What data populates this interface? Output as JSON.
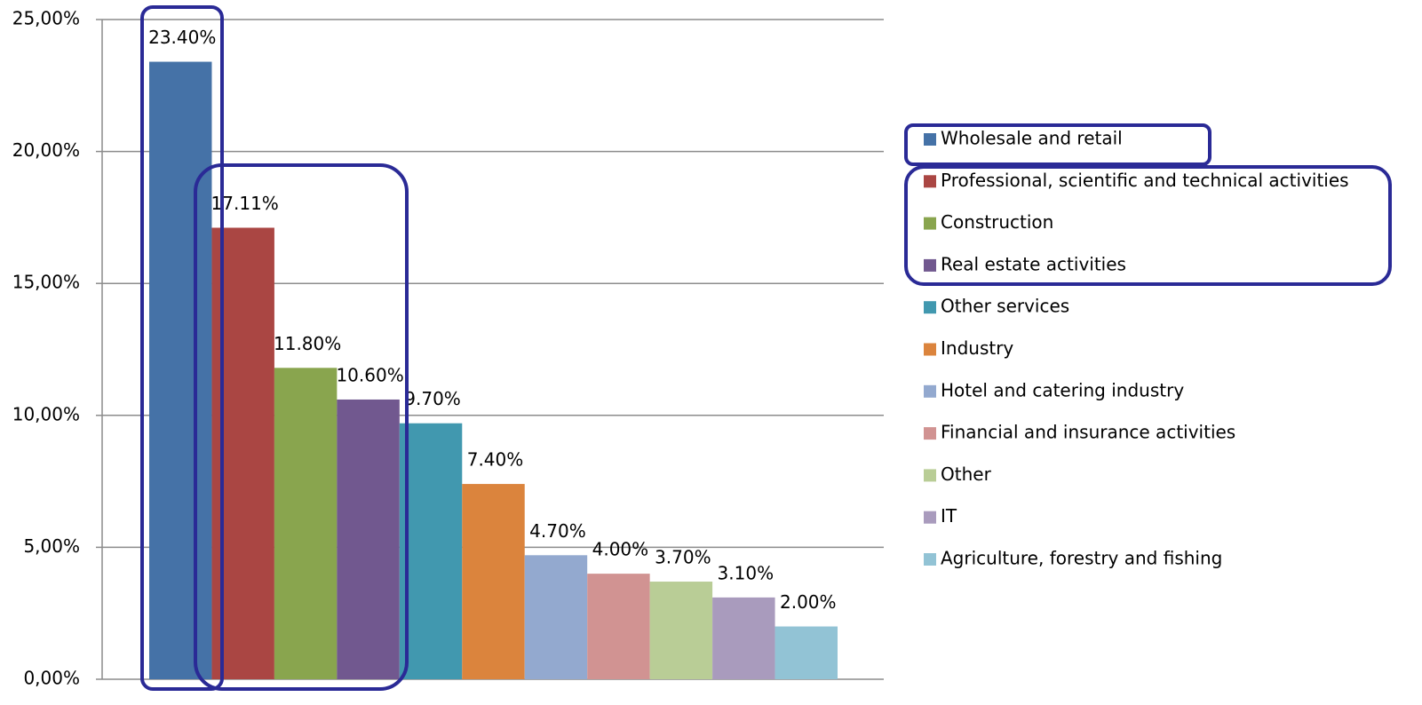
{
  "chart_data": {
    "type": "bar",
    "categories": [
      null
    ],
    "series": [
      {
        "name": "Wholesale and retail",
        "color": "#4572a7",
        "values": [
          23.4
        ],
        "value_labels": [
          "23.40%"
        ]
      },
      {
        "name": "Professional, scientific and technical activities",
        "color": "#aa4643",
        "values": [
          17.11
        ],
        "value_labels": [
          "17.11%"
        ]
      },
      {
        "name": "Construction",
        "color": "#89a54e",
        "values": [
          11.8
        ],
        "value_labels": [
          "11.80%"
        ]
      },
      {
        "name": "Real estate activities",
        "color": "#71588f",
        "values": [
          10.6
        ],
        "value_labels": [
          "10.60%"
        ]
      },
      {
        "name": "Other services",
        "color": "#4198af",
        "values": [
          9.7
        ],
        "value_labels": [
          "9.70%"
        ]
      },
      {
        "name": "Industry",
        "color": "#db843d",
        "values": [
          7.4
        ],
        "value_labels": [
          "7.40%"
        ]
      },
      {
        "name": "Hotel and catering industry",
        "color": "#93a9cf",
        "values": [
          4.7
        ],
        "value_labels": [
          "4.70%"
        ]
      },
      {
        "name": "Financial and insurance activities",
        "color": "#d19392",
        "values": [
          4.0
        ],
        "value_labels": [
          "4.00%"
        ]
      },
      {
        "name": "Other",
        "color": "#b9cd96",
        "values": [
          3.7
        ],
        "value_labels": [
          "3.70%"
        ]
      },
      {
        "name": "IT",
        "color": "#a99bbd",
        "values": [
          3.1
        ],
        "value_labels": [
          "3.10%"
        ]
      },
      {
        "name": "Agriculture, forestry and fishing",
        "color": "#92c3d5",
        "values": [
          2.0
        ],
        "value_labels": [
          "2.00%"
        ]
      }
    ],
    "ylim": [
      0,
      25
    ],
    "yticks": [
      {
        "value": 0,
        "label": "0,00%"
      },
      {
        "value": 5,
        "label": "5,00%"
      },
      {
        "value": 10,
        "label": "10,00%"
      },
      {
        "value": 15,
        "label": "15,00%"
      },
      {
        "value": 20,
        "label": "20,00%"
      },
      {
        "value": 25,
        "label": "25,00%"
      }
    ],
    "grid": true,
    "legend": "right"
  }
}
